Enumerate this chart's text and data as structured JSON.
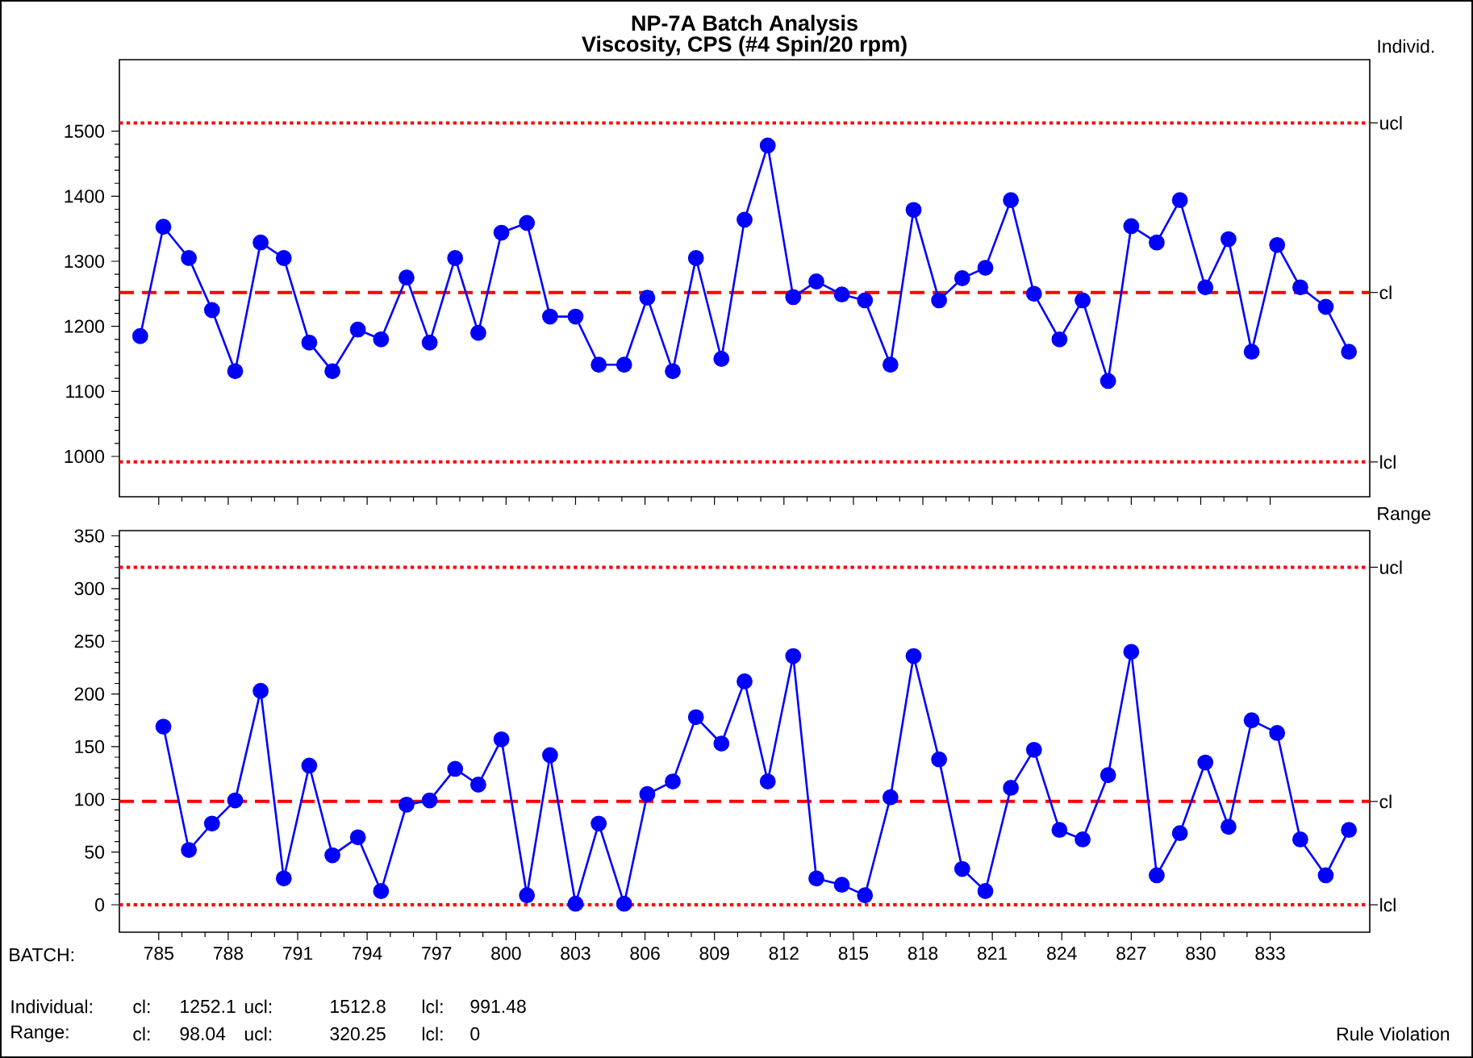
{
  "chart_data": [
    {
      "type": "line",
      "title": "NP-7A Batch Analysis",
      "subtitle": "Viscosity, CPS (#4 Spin/20 rpm)",
      "ylabel": "Individ.",
      "x": [
        784.2,
        785.2,
        786.3,
        787.3,
        788.3,
        789.4,
        790.4,
        791.5,
        792.5,
        793.6,
        794.6,
        795.7,
        796.7,
        797.8,
        798.8,
        799.8,
        800.9,
        801.9,
        803.0,
        804.0,
        805.1,
        806.1,
        807.2,
        808.2,
        809.3,
        810.3,
        811.3,
        812.4,
        813.4,
        814.5,
        815.5,
        816.6,
        817.6,
        818.7,
        819.7,
        820.7,
        821.8,
        822.8,
        823.9,
        824.9,
        826.0,
        827.0,
        828.1,
        829.1,
        830.2,
        831.2,
        832.2,
        833.3,
        834.3,
        835.4,
        836.4
      ],
      "series": [
        {
          "color": "#0000ff",
          "values": [
            1185,
            1353,
            1305,
            1225,
            1131,
            1329,
            1305,
            1175,
            1131,
            1195,
            1180,
            1275,
            1175,
            1305,
            1190,
            1344,
            1359,
            1215,
            1215,
            1141,
            1141,
            1244,
            1131,
            1305,
            1150,
            1364,
            1478,
            1245,
            1269,
            1249,
            1240,
            1141,
            1379,
            1240,
            1274,
            1290,
            1394,
            1250,
            1180,
            1240,
            1116,
            1354,
            1329,
            1394,
            1260,
            1334,
            1161,
            1325,
            1260,
            1230,
            1161
          ]
        }
      ],
      "xlim": [
        783.3,
        837.3
      ],
      "xticks": [
        785,
        788,
        791,
        794,
        797,
        800,
        803,
        806,
        809,
        812,
        815,
        818,
        821,
        824,
        827,
        830,
        833
      ],
      "ylim": [
        938,
        1610
      ],
      "yticks": [
        1000,
        1100,
        1200,
        1300,
        1400,
        1500
      ],
      "tick_labels": "y",
      "marker": "circle",
      "line_style": "solid",
      "ref_lines": [
        {
          "axis": "y",
          "value": 1512.8,
          "label": "ucl",
          "color": "#ff0000",
          "line_style": "dotted"
        },
        {
          "axis": "y",
          "value": 1252.1,
          "label": "cl",
          "color": "#ff0000",
          "line_style": "dashed"
        },
        {
          "axis": "y",
          "value": 991.48,
          "label": "lcl",
          "color": "#ff0000",
          "line_style": "dotted"
        }
      ]
    },
    {
      "type": "line",
      "ylabel": "Range",
      "xlabel": "BATCH:",
      "x": [
        785.2,
        786.3,
        787.3,
        788.3,
        789.4,
        790.4,
        791.5,
        792.5,
        793.6,
        794.6,
        795.7,
        796.7,
        797.8,
        798.8,
        799.8,
        800.9,
        801.9,
        803.0,
        804.0,
        805.1,
        806.1,
        807.2,
        808.2,
        809.3,
        810.3,
        811.3,
        812.4,
        813.4,
        814.5,
        815.5,
        816.6,
        817.6,
        818.7,
        819.7,
        820.7,
        821.8,
        822.8,
        823.9,
        824.9,
        826.0,
        827.0,
        828.1,
        829.1,
        830.2,
        831.2,
        832.2,
        833.3,
        834.3,
        835.4,
        836.4
      ],
      "series": [
        {
          "color": "#0000ff",
          "values": [
            169,
            52,
            77,
            99,
            203,
            25,
            132,
            47,
            64,
            13,
            95,
            99,
            129,
            114,
            157,
            9,
            142,
            1,
            77,
            1,
            105,
            117,
            178,
            153,
            212,
            117,
            236,
            25,
            19,
            9,
            102,
            236,
            138,
            34,
            13,
            111,
            147,
            71,
            62,
            123,
            240,
            28,
            68,
            135,
            74,
            175,
            163,
            62,
            28,
            71
          ]
        }
      ],
      "xlim": [
        783.3,
        837.3
      ],
      "xticks": [
        785,
        788,
        791,
        794,
        797,
        800,
        803,
        806,
        809,
        812,
        815,
        818,
        821,
        824,
        827,
        830,
        833
      ],
      "ylim": [
        -26,
        355
      ],
      "yticks": [
        0,
        50,
        100,
        150,
        200,
        250,
        300,
        350
      ],
      "marker": "circle",
      "line_style": "solid",
      "ref_lines": [
        {
          "axis": "y",
          "value": 320.25,
          "label": "ucl",
          "color": "#ff0000",
          "line_style": "dotted"
        },
        {
          "axis": "y",
          "value": 98.04,
          "label": "cl",
          "color": "#ff0000",
          "line_style": "dashed"
        },
        {
          "axis": "y",
          "value": 0,
          "label": "lcl",
          "color": "#ff0000",
          "line_style": "dotted"
        }
      ],
      "annotations": [
        "Individual:",
        "cl:",
        "1252.1",
        "ucl:",
        "1512.8",
        "lcl:",
        "991.48",
        "Range:",
        "cl:",
        "98.04",
        "ucl:",
        "320.25",
        "lcl:",
        "0",
        "Rule Violation"
      ]
    }
  ]
}
